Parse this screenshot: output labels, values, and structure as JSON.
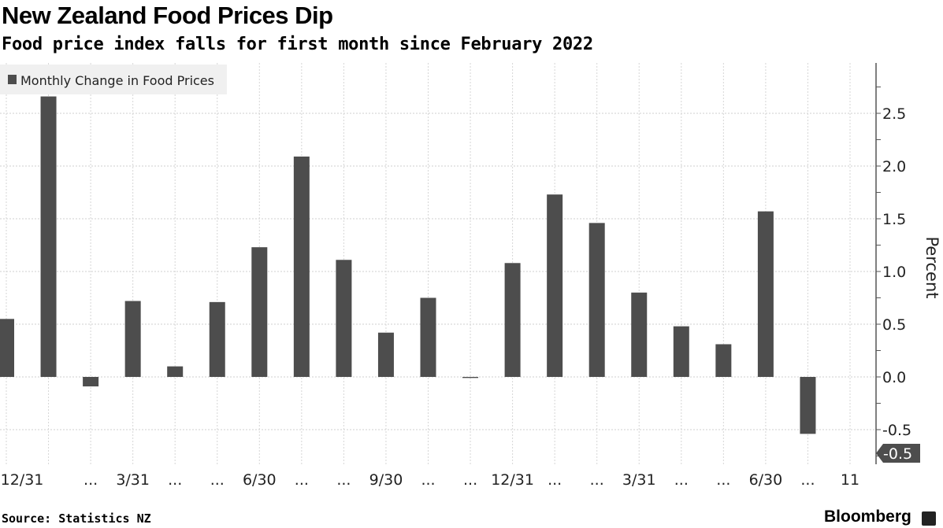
{
  "title": "New Zealand Food Prices Dip",
  "subtitle": "Food price index falls for first month since February 2022",
  "source": "Source: Statistics NZ",
  "brand": "Bloomberg",
  "chart_data": {
    "type": "bar",
    "title": "New Zealand Food Prices Dip",
    "subtitle": "Food price index falls for first month since February 2022",
    "ylabel": "Percent",
    "ylim": [
      -0.83,
      2.98
    ],
    "yticks": [
      "-0.5",
      "0.0",
      "0.5",
      "1.0",
      "1.5",
      "2.0",
      "2.5"
    ],
    "ytick_values": [
      -0.5,
      0,
      0.5,
      1.0,
      1.5,
      2.0,
      2.5
    ],
    "grid": true,
    "legend_position": "top-left",
    "axis_side": "right",
    "categories": [
      "12/31",
      "",
      "...",
      "3/31",
      "...",
      "...",
      "6/30",
      "...",
      "...",
      "9/30",
      "...",
      "...",
      "12/31",
      "...",
      "...",
      "3/31",
      "...",
      "...",
      "6/30",
      "...",
      "11"
    ],
    "series": [
      {
        "name": "Monthly Change in Food Prices",
        "color": "#4d4d4d",
        "values": [
          0.55,
          2.66,
          -0.09,
          0.72,
          0.1,
          0.71,
          1.23,
          2.09,
          1.11,
          0.42,
          0.75,
          -0.01,
          1.08,
          1.73,
          1.46,
          0.8,
          0.48,
          0.31,
          1.57,
          -0.54,
          null
        ]
      }
    ],
    "last_value_label": "-0.5"
  }
}
